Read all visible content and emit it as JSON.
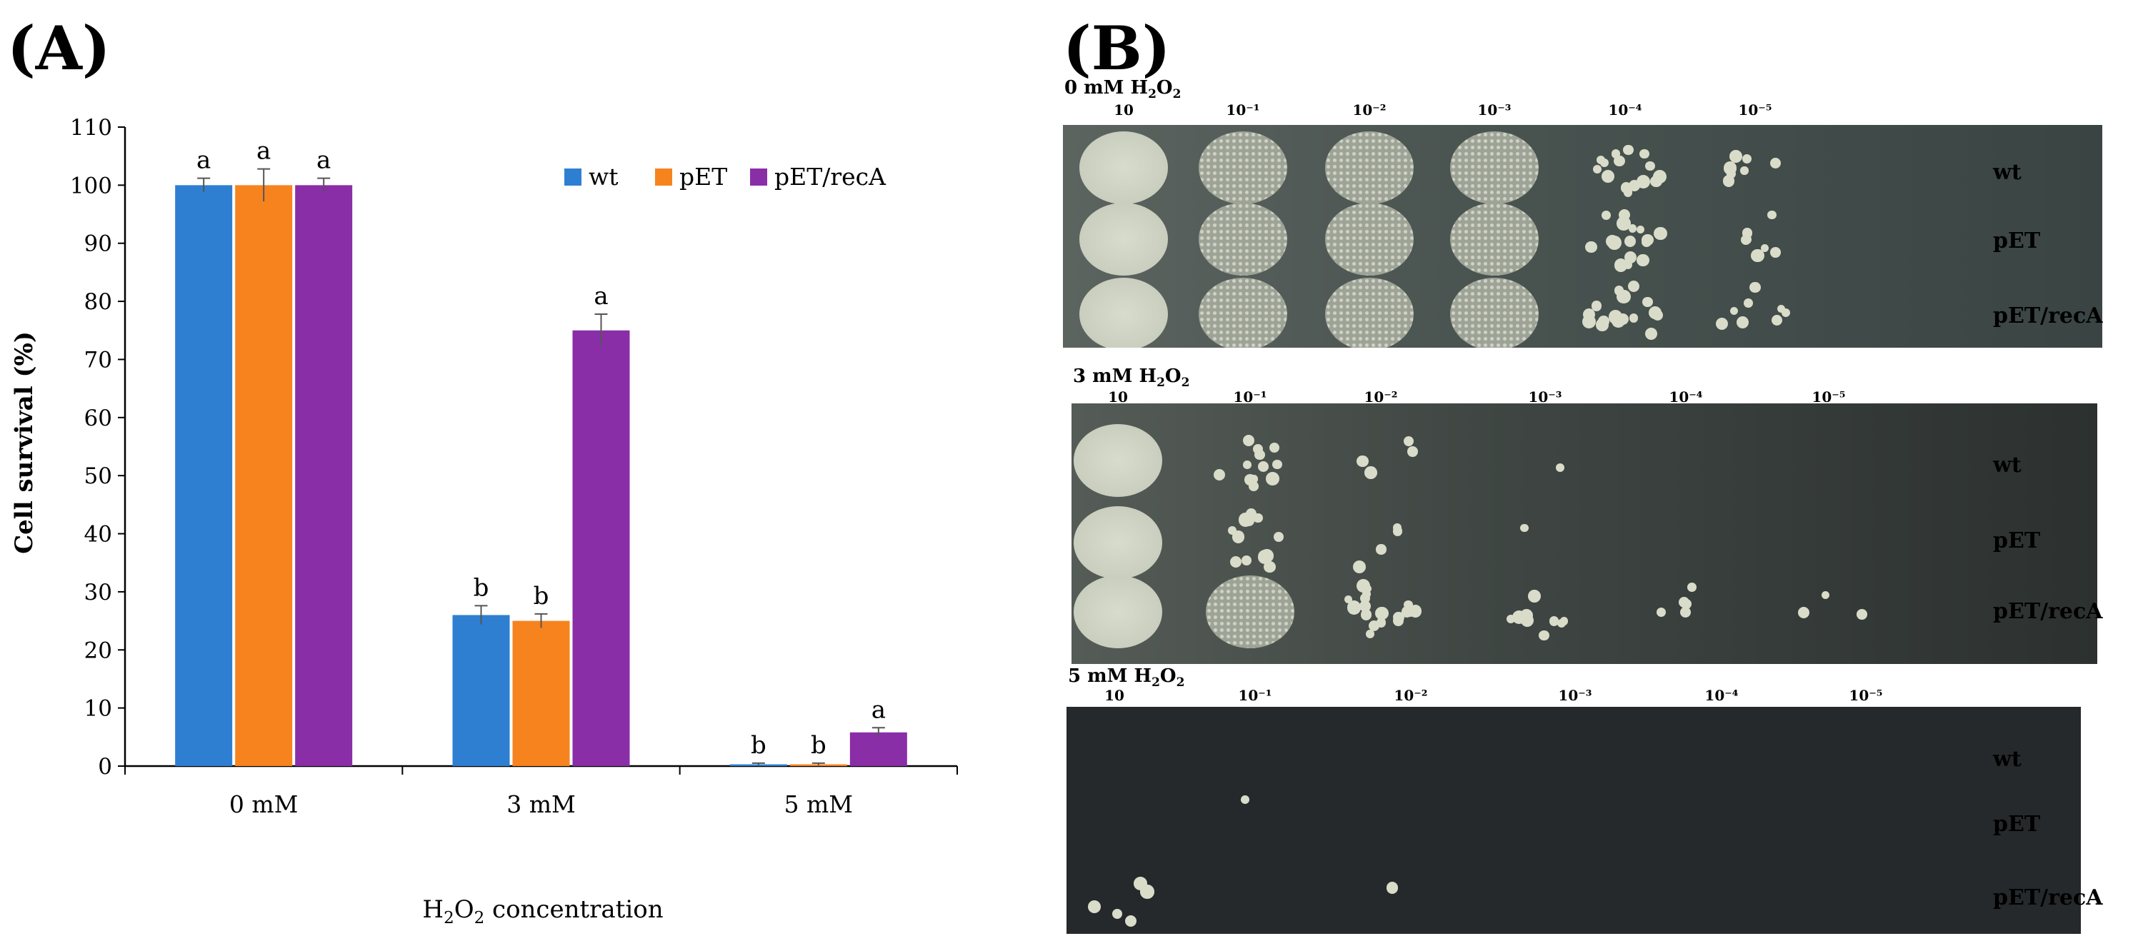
{
  "panels": {
    "a_label": "(A)",
    "b_label": "(B)"
  },
  "chart_data": {
    "type": "bar",
    "categories": [
      "0 mM",
      "3 mM",
      "5 mM"
    ],
    "series": [
      {
        "name": "wt",
        "color": "#2e7fd1",
        "values": [
          100,
          26,
          0.3
        ],
        "errors": [
          1.2,
          1.6,
          0.2
        ],
        "letters": [
          "a",
          "b",
          "b"
        ]
      },
      {
        "name": "pET",
        "color": "#f7831f",
        "values": [
          100,
          25,
          0.3
        ],
        "errors": [
          2.8,
          1.2,
          0.2
        ],
        "letters": [
          "a",
          "b",
          "b"
        ]
      },
      {
        "name": "pET/recA",
        "color": "#8a2ea8",
        "values": [
          100,
          75,
          5.8
        ],
        "errors": [
          1.2,
          2.8,
          0.8
        ],
        "letters": [
          "a",
          "a",
          "a"
        ]
      }
    ],
    "ylabel": "Cell survival (%)",
    "xlabel": "H2O2 concentration",
    "ylim": [
      0,
      110
    ],
    "yticks": [
      0,
      10,
      20,
      30,
      40,
      50,
      60,
      70,
      80,
      90,
      100,
      110
    ],
    "legend": "top-right",
    "grid": false
  },
  "spot_assay": {
    "plates": [
      {
        "title_prefix": "0 mM H",
        "title_sub": "2",
        "title_mid": "O",
        "title_sub2": "2",
        "title_suffix": ""
      },
      {
        "title_prefix": "3 mM H",
        "title_sub": "2",
        "title_mid": "O",
        "title_sub2": "2",
        "title_suffix": ""
      },
      {
        "title_prefix": "5 mM H",
        "title_sub": "2",
        "title_mid": "O",
        "title_sub2": "2",
        "title_suffix": ""
      }
    ],
    "dilutions": [
      "10",
      "10⁻¹",
      "10⁻²",
      "10⁻³",
      "10⁻⁴",
      "10⁻⁵"
    ],
    "strains": [
      "wt",
      "pET",
      "pET/recA"
    ],
    "colors": {
      "plate_light": "#4f5750",
      "plate_mid": "#3a403d",
      "plate_dark": "#23272a",
      "lawn": "#cfd3c4"
    }
  }
}
